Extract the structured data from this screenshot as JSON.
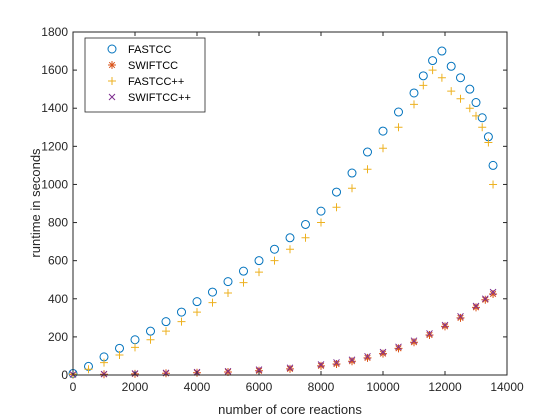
{
  "chart_data": {
    "type": "scatter",
    "title": "",
    "xlabel": "number of core reactions",
    "ylabel": "runtime in seconds",
    "xlim": [
      0,
      14000
    ],
    "ylim": [
      0,
      1800
    ],
    "xticks": [
      "0",
      "2000",
      "4000",
      "6000",
      "8000",
      "10000",
      "12000",
      "14000"
    ],
    "yticks": [
      "0",
      "200",
      "400",
      "600",
      "800",
      "1000",
      "1200",
      "1400",
      "1600",
      "1800"
    ],
    "grid": false,
    "legend_position": "top-left",
    "series": [
      {
        "name": "FASTCC",
        "marker": "circle",
        "color": "#0072BD",
        "x": [
          0,
          500,
          1000,
          1500,
          2000,
          2500,
          3000,
          3500,
          4000,
          4500,
          5000,
          5500,
          6000,
          6500,
          7000,
          7500,
          8000,
          8500,
          9000,
          9500,
          10000,
          10500,
          11000,
          11300,
          11600,
          11900,
          12200,
          12500,
          12800,
          13000,
          13200,
          13400,
          13550
        ],
        "y": [
          8,
          45,
          95,
          140,
          185,
          230,
          280,
          330,
          385,
          435,
          490,
          545,
          600,
          660,
          720,
          790,
          860,
          960,
          1060,
          1170,
          1280,
          1380,
          1480,
          1570,
          1650,
          1700,
          1620,
          1560,
          1500,
          1430,
          1350,
          1250,
          1100
        ]
      },
      {
        "name": "SWIFTCC",
        "marker": "asterisk",
        "color": "#D95319",
        "x": [
          0,
          1000,
          2000,
          3000,
          4000,
          5000,
          6000,
          7000,
          8000,
          8500,
          9000,
          9500,
          10000,
          10500,
          11000,
          11500,
          12000,
          12500,
          13000,
          13300,
          13550
        ],
        "y": [
          2,
          4,
          6,
          9,
          12,
          16,
          22,
          32,
          48,
          58,
          72,
          90,
          112,
          140,
          172,
          210,
          255,
          300,
          355,
          395,
          425
        ]
      },
      {
        "name": "FASTCC++",
        "marker": "plus",
        "color": "#EDB120",
        "x": [
          0,
          500,
          1000,
          1500,
          2000,
          2500,
          3000,
          3500,
          4000,
          4500,
          5000,
          5500,
          6000,
          6500,
          7000,
          7500,
          8000,
          8500,
          9000,
          9500,
          10000,
          10500,
          11000,
          11300,
          11600,
          11900,
          12200,
          12500,
          12800,
          13000,
          13200,
          13400,
          13550
        ],
        "y": [
          5,
          30,
          65,
          105,
          145,
          185,
          230,
          280,
          330,
          380,
          430,
          485,
          540,
          600,
          660,
          720,
          800,
          880,
          980,
          1080,
          1190,
          1300,
          1420,
          1520,
          1600,
          1560,
          1490,
          1450,
          1400,
          1360,
          1300,
          1220,
          1000
        ]
      },
      {
        "name": "SWIFTCC++",
        "marker": "x",
        "color": "#7E2F8E",
        "x": [
          0,
          1000,
          2000,
          3000,
          4000,
          5000,
          6000,
          7000,
          8000,
          8500,
          9000,
          9500,
          10000,
          10500,
          11000,
          11500,
          12000,
          12500,
          13000,
          13300,
          13550
        ],
        "y": [
          3,
          5,
          8,
          11,
          15,
          20,
          28,
          38,
          55,
          66,
          80,
          98,
          120,
          148,
          180,
          218,
          262,
          308,
          362,
          400,
          435
        ]
      }
    ]
  }
}
